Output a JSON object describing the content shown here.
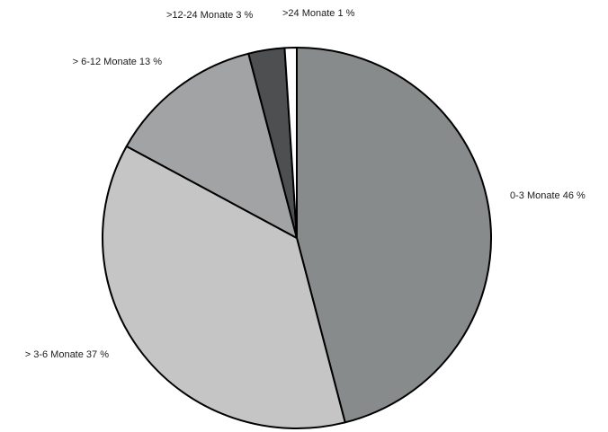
{
  "chart_data": {
    "type": "pie",
    "title": "",
    "start_angle_deg": 0,
    "direction": "clockwise",
    "slices": [
      {
        "label": "0-3 Monate 46 %",
        "category": "0-3 Monate",
        "value": 46,
        "unit": "%",
        "color": "#878b8b"
      },
      {
        "label": "> 3-6 Monate 37 %",
        "category": "> 3-6 Monate",
        "value": 37,
        "unit": "%",
        "color": "#c4c5c4"
      },
      {
        "label": "> 6-12 Monate 13 %",
        "category": "> 6-12 Monate",
        "value": 13,
        "unit": "%",
        "color": "#a2a3a4"
      },
      {
        "label": ">12-24 Monate 3 %",
        "category": ">12-24 Monate",
        "value": 3,
        "unit": "%",
        "color": "#4d4f51"
      },
      {
        "label": ">24 Monate 1 %",
        "category": ">24 Monate",
        "value": 1,
        "unit": "%",
        "color": "#ffffff"
      }
    ],
    "legend": "none",
    "slice_border_color": "#000000"
  }
}
